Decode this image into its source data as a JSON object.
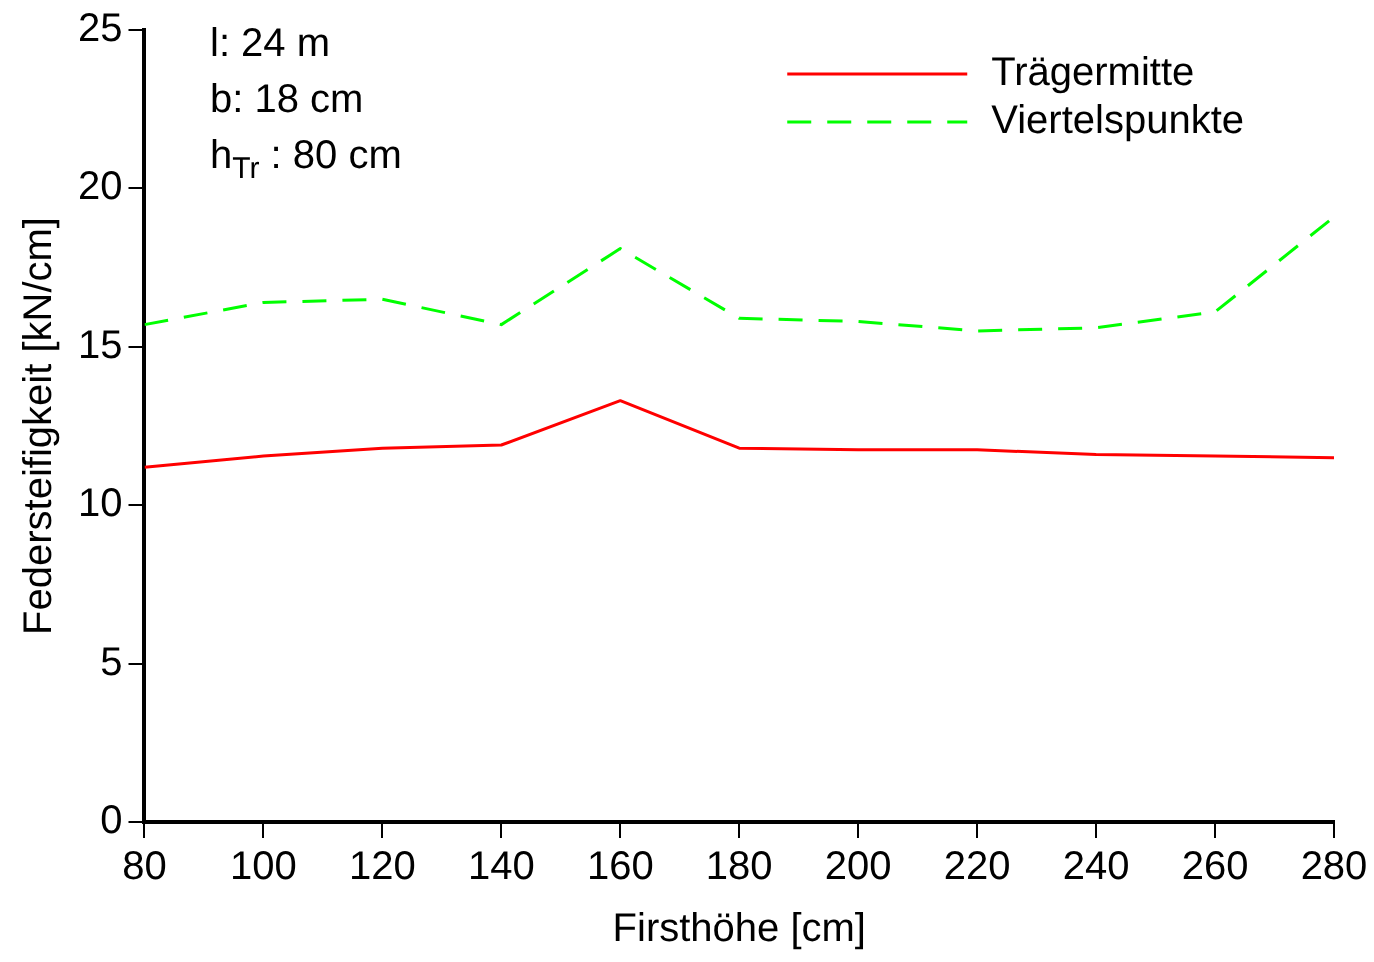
{
  "chart_data": {
    "type": "line",
    "xlabel": "Firsthöhe [cm]",
    "ylabel": "Federsteifigkeit [kN/cm]",
    "x": [
      80,
      100,
      120,
      140,
      160,
      180,
      200,
      220,
      240,
      260,
      280
    ],
    "series": [
      {
        "name": "Trägermitte",
        "color": "#ff0000",
        "line_style": "solid",
        "values": [
          11.2,
          11.55,
          11.8,
          11.9,
          13.3,
          11.8,
          11.75,
          11.75,
          11.6,
          11.55,
          11.5
        ]
      },
      {
        "name": "Viertelspunkte",
        "color": "#00ff00",
        "line_style": "dashed",
        "values": [
          15.7,
          16.4,
          16.5,
          15.7,
          18.1,
          15.9,
          15.8,
          15.5,
          15.6,
          16.1,
          19.1
        ]
      }
    ],
    "xlim": [
      80,
      280
    ],
    "xticks": [
      80,
      100,
      120,
      140,
      160,
      180,
      200,
      220,
      240,
      260,
      280
    ],
    "ylim": [
      0,
      25
    ],
    "yticks": [
      0,
      5,
      10,
      15,
      20,
      25
    ],
    "annotations": [
      "l:  24 m",
      "b: 18 cm",
      "h$_{Tr}$ :  80 cm"
    ],
    "grid": false,
    "legend": "top right",
    "marker": "none"
  }
}
